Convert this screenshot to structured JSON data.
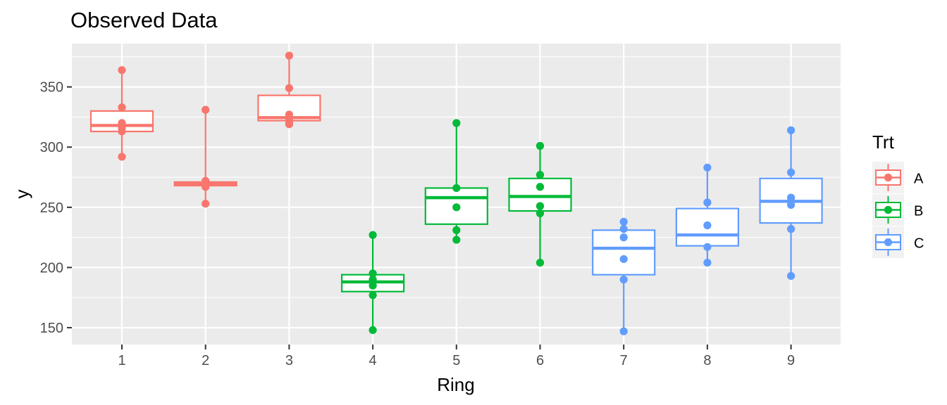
{
  "chart_data": {
    "type": "boxplot",
    "title": "Observed Data",
    "xlabel": "Ring",
    "ylabel": "y",
    "ylim": [
      136,
      386
    ],
    "yticks": [
      150,
      200,
      250,
      300,
      350
    ],
    "categories": [
      "1",
      "2",
      "3",
      "4",
      "5",
      "6",
      "7",
      "8",
      "9"
    ],
    "grid": true,
    "legend": {
      "title": "Trt",
      "placement": "right",
      "entries": [
        {
          "label": "A",
          "color": "#F8766D"
        },
        {
          "label": "B",
          "color": "#00BA38"
        },
        {
          "label": "C",
          "color": "#619CFF"
        }
      ]
    },
    "boxes": [
      {
        "ring": "1",
        "trt": "A",
        "q1": 313,
        "median": 318,
        "q3": 330,
        "whisker_low": 292,
        "whisker_high": 364,
        "points": [
          364,
          333,
          320,
          318,
          316,
          313,
          292
        ]
      },
      {
        "ring": "2",
        "trt": "A",
        "q1": 268,
        "median": 269.5,
        "q3": 271,
        "whisker_low": 253,
        "whisker_high": 331,
        "points": [
          331,
          272,
          270,
          269,
          268,
          267,
          253
        ]
      },
      {
        "ring": "3",
        "trt": "A",
        "q1": 322,
        "median": 324.5,
        "q3": 343,
        "whisker_low": 319,
        "whisker_high": 376,
        "points": [
          376,
          349,
          327,
          325,
          322,
          320,
          319
        ]
      },
      {
        "ring": "4",
        "trt": "B",
        "q1": 180,
        "median": 188,
        "q3": 194,
        "whisker_low": 148,
        "whisker_high": 227,
        "points": [
          227,
          195,
          190,
          188,
          185,
          177,
          148
        ]
      },
      {
        "ring": "5",
        "trt": "B",
        "q1": 236,
        "median": 258,
        "q3": 266,
        "whisker_low": 223,
        "whisker_high": 320,
        "points": [
          320,
          266,
          250,
          231,
          223
        ]
      },
      {
        "ring": "6",
        "trt": "B",
        "q1": 247,
        "median": 259,
        "q3": 274,
        "whisker_low": 204,
        "whisker_high": 301,
        "points": [
          301,
          277,
          267,
          251,
          245,
          204
        ]
      },
      {
        "ring": "7",
        "trt": "C",
        "q1": 194,
        "median": 216,
        "q3": 231,
        "whisker_low": 147,
        "whisker_high": 238,
        "points": [
          238,
          232,
          225,
          207,
          190,
          147
        ]
      },
      {
        "ring": "8",
        "trt": "C",
        "q1": 218,
        "median": 227,
        "q3": 249,
        "whisker_low": 204,
        "whisker_high": 283,
        "points": [
          283,
          254,
          235,
          217,
          204
        ]
      },
      {
        "ring": "9",
        "trt": "C",
        "q1": 237,
        "median": 255,
        "q3": 274,
        "whisker_low": 193,
        "whisker_high": 314,
        "points": [
          314,
          279,
          258,
          255,
          252,
          232,
          193
        ]
      }
    ]
  }
}
